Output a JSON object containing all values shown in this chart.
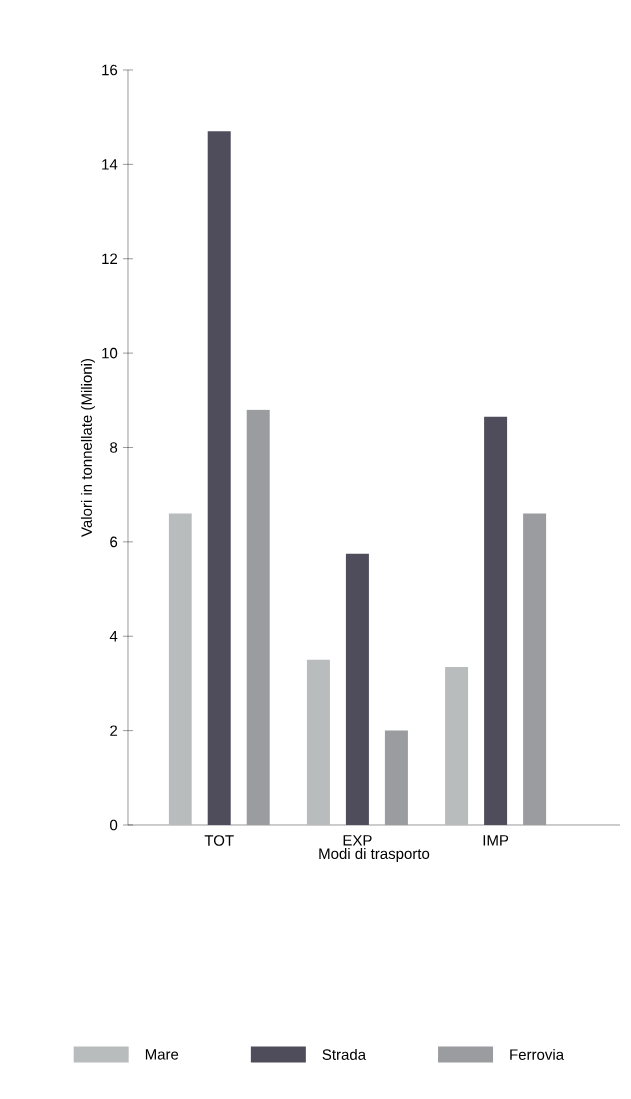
{
  "chart_data": {
    "type": "bar",
    "xlabel": "Modi di trasporto",
    "ylabel": "Valori in tonnellate (Milioni)",
    "categories": [
      "TOT",
      "EXP",
      "IMP"
    ],
    "series": [
      {
        "name": "Mare",
        "color": "#b8bcbd",
        "values": [
          6.6,
          3.5,
          3.35
        ]
      },
      {
        "name": "Strada",
        "color": "#4f4c5c",
        "values": [
          14.7,
          5.75,
          8.65
        ]
      },
      {
        "name": "Ferrovia",
        "color": "#9a9c9f",
        "values": [
          8.8,
          2.0,
          6.6
        ]
      }
    ],
    "ylim": [
      0,
      16
    ],
    "yticks": [
      0,
      2,
      4,
      6,
      8,
      10,
      12,
      14,
      16
    ],
    "grid": false,
    "legend": "bottom"
  }
}
